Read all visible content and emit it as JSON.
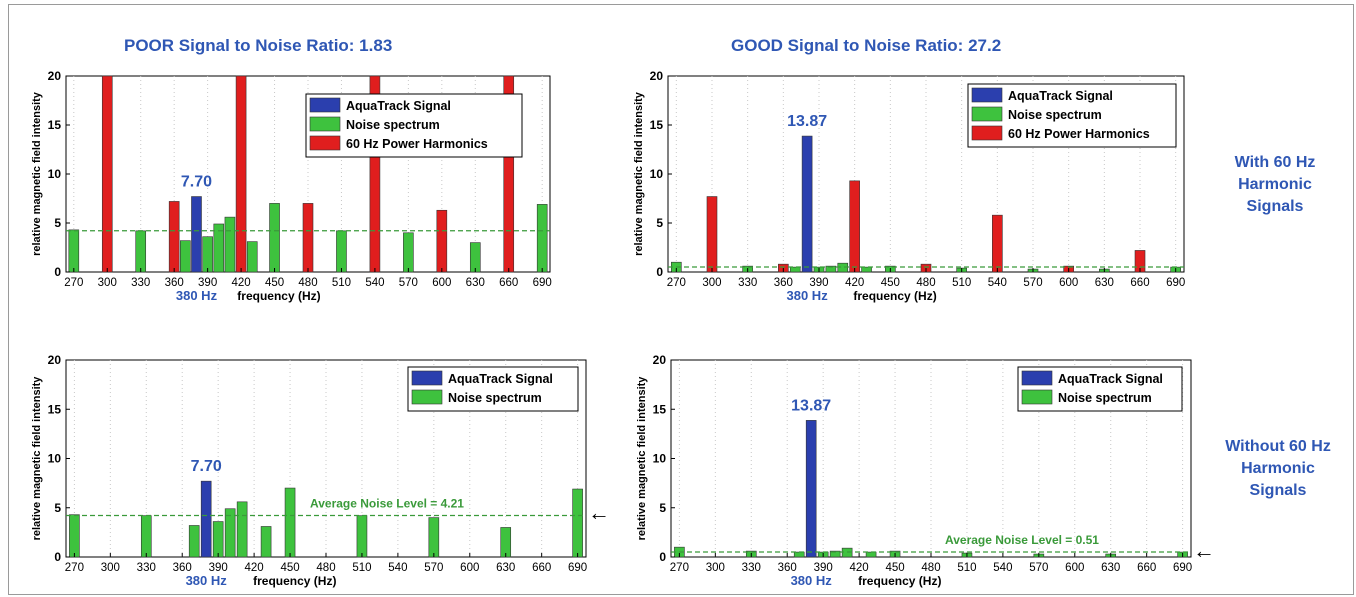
{
  "titles": {
    "poor": "POOR Signal to Noise Ratio:  1.83",
    "good": "GOOD Signal to Noise Ratio:   27.2"
  },
  "side_labels": {
    "with": [
      "With 60 Hz",
      "Harmonic",
      "Signals"
    ],
    "without": [
      "Without 60 Hz",
      "Harmonic",
      "Signals"
    ]
  },
  "colors": {
    "signal": "#2b3fae",
    "noise": "#3ec23e",
    "harmonic": "#e01e1e",
    "annotation_blue": "#2f57b4",
    "avg_line": "#3a9a3a"
  },
  "chart_data": [
    {
      "id": "top-left",
      "type": "bar",
      "ylabel": "relative magnetic field intensity",
      "xlabel": "frequency (Hz)",
      "xlim": [
        263,
        697
      ],
      "ylim": [
        0,
        20
      ],
      "xticks": [
        270,
        300,
        330,
        360,
        390,
        420,
        450,
        480,
        510,
        540,
        570,
        600,
        630,
        660,
        690
      ],
      "yticks": [
        0,
        5,
        10,
        15,
        20
      ],
      "legend": [
        "AquaTrack Signal",
        "Noise spectrum",
        "60 Hz Power Harmonics"
      ],
      "signal_label": "7.70",
      "freq_label": "380 Hz",
      "avg_noise": 4.21,
      "avg_label": "",
      "series": [
        {
          "name": "AquaTrack Signal",
          "x": [
            380
          ],
          "values": [
            7.7
          ]
        },
        {
          "name": "Noise spectrum",
          "x": [
            270,
            330,
            370,
            390,
            400,
            410,
            430,
            450,
            510,
            570,
            630,
            690
          ],
          "values": [
            4.3,
            4.2,
            3.2,
            3.6,
            4.9,
            5.6,
            3.1,
            7.0,
            4.2,
            4.0,
            3.0,
            6.9
          ]
        },
        {
          "name": "60 Hz Power Harmonics",
          "x": [
            300,
            360,
            420,
            480,
            540,
            600,
            660
          ],
          "values": [
            20,
            7.2,
            20,
            7.0,
            20,
            6.3,
            20
          ]
        }
      ]
    },
    {
      "id": "top-right",
      "type": "bar",
      "ylabel": "relative magnetic field intensity",
      "xlabel": "frequency (Hz)",
      "xlim": [
        263,
        697
      ],
      "ylim": [
        0,
        20
      ],
      "xticks": [
        270,
        300,
        330,
        360,
        390,
        420,
        450,
        480,
        510,
        540,
        570,
        600,
        630,
        660,
        690
      ],
      "yticks": [
        0,
        5,
        10,
        15,
        20
      ],
      "legend": [
        "AquaTrack Signal",
        "Noise spectrum",
        "60 Hz Power Harmonics"
      ],
      "signal_label": "13.87",
      "freq_label": "380 Hz",
      "avg_noise": 0.51,
      "avg_label": "",
      "series": [
        {
          "name": "AquaTrack Signal",
          "x": [
            380
          ],
          "values": [
            13.87
          ]
        },
        {
          "name": "Noise spectrum",
          "x": [
            270,
            330,
            370,
            390,
            400,
            410,
            430,
            450,
            510,
            570,
            630,
            690
          ],
          "values": [
            1.0,
            0.6,
            0.5,
            0.5,
            0.6,
            0.9,
            0.5,
            0.6,
            0.4,
            0.3,
            0.3,
            0.5
          ]
        },
        {
          "name": "60 Hz Power Harmonics",
          "x": [
            300,
            360,
            420,
            480,
            540,
            600,
            660
          ],
          "values": [
            7.7,
            0.8,
            9.3,
            0.8,
            5.8,
            0.6,
            2.2
          ]
        }
      ]
    },
    {
      "id": "bottom-left",
      "type": "bar",
      "ylabel": "relative magnetic field intensity",
      "xlabel": "frequency (Hz)",
      "xlim": [
        263,
        697
      ],
      "ylim": [
        0,
        20
      ],
      "xticks": [
        270,
        300,
        330,
        360,
        390,
        420,
        450,
        480,
        510,
        540,
        570,
        600,
        630,
        660,
        690
      ],
      "yticks": [
        0,
        5,
        10,
        15,
        20
      ],
      "legend": [
        "AquaTrack Signal",
        "Noise spectrum"
      ],
      "signal_label": "7.70",
      "freq_label": "380 Hz",
      "avg_noise": 4.21,
      "avg_label": "Average Noise Level = 4.21",
      "series": [
        {
          "name": "AquaTrack Signal",
          "x": [
            380
          ],
          "values": [
            7.7
          ]
        },
        {
          "name": "Noise spectrum",
          "x": [
            270,
            330,
            370,
            390,
            400,
            410,
            430,
            450,
            510,
            570,
            630,
            690
          ],
          "values": [
            4.3,
            4.2,
            3.2,
            3.6,
            4.9,
            5.6,
            3.1,
            7.0,
            4.2,
            4.0,
            3.0,
            6.9
          ]
        }
      ]
    },
    {
      "id": "bottom-right",
      "type": "bar",
      "ylabel": "relative magnetic field intensity",
      "xlabel": "frequency (Hz)",
      "xlim": [
        263,
        697
      ],
      "ylim": [
        0,
        20
      ],
      "xticks": [
        270,
        300,
        330,
        360,
        390,
        420,
        450,
        480,
        510,
        540,
        570,
        600,
        630,
        660,
        690
      ],
      "yticks": [
        0,
        5,
        10,
        15,
        20
      ],
      "legend": [
        "AquaTrack Signal",
        "Noise spectrum"
      ],
      "signal_label": "13.87",
      "freq_label": "380 Hz",
      "avg_noise": 0.51,
      "avg_label": "Average Noise Level = 0.51",
      "series": [
        {
          "name": "AquaTrack Signal",
          "x": [
            380
          ],
          "values": [
            13.87
          ]
        },
        {
          "name": "Noise spectrum",
          "x": [
            270,
            330,
            370,
            390,
            400,
            410,
            430,
            450,
            510,
            570,
            630,
            690
          ],
          "values": [
            1.0,
            0.6,
            0.5,
            0.5,
            0.6,
            0.9,
            0.5,
            0.6,
            0.4,
            0.3,
            0.3,
            0.5
          ]
        }
      ]
    }
  ]
}
